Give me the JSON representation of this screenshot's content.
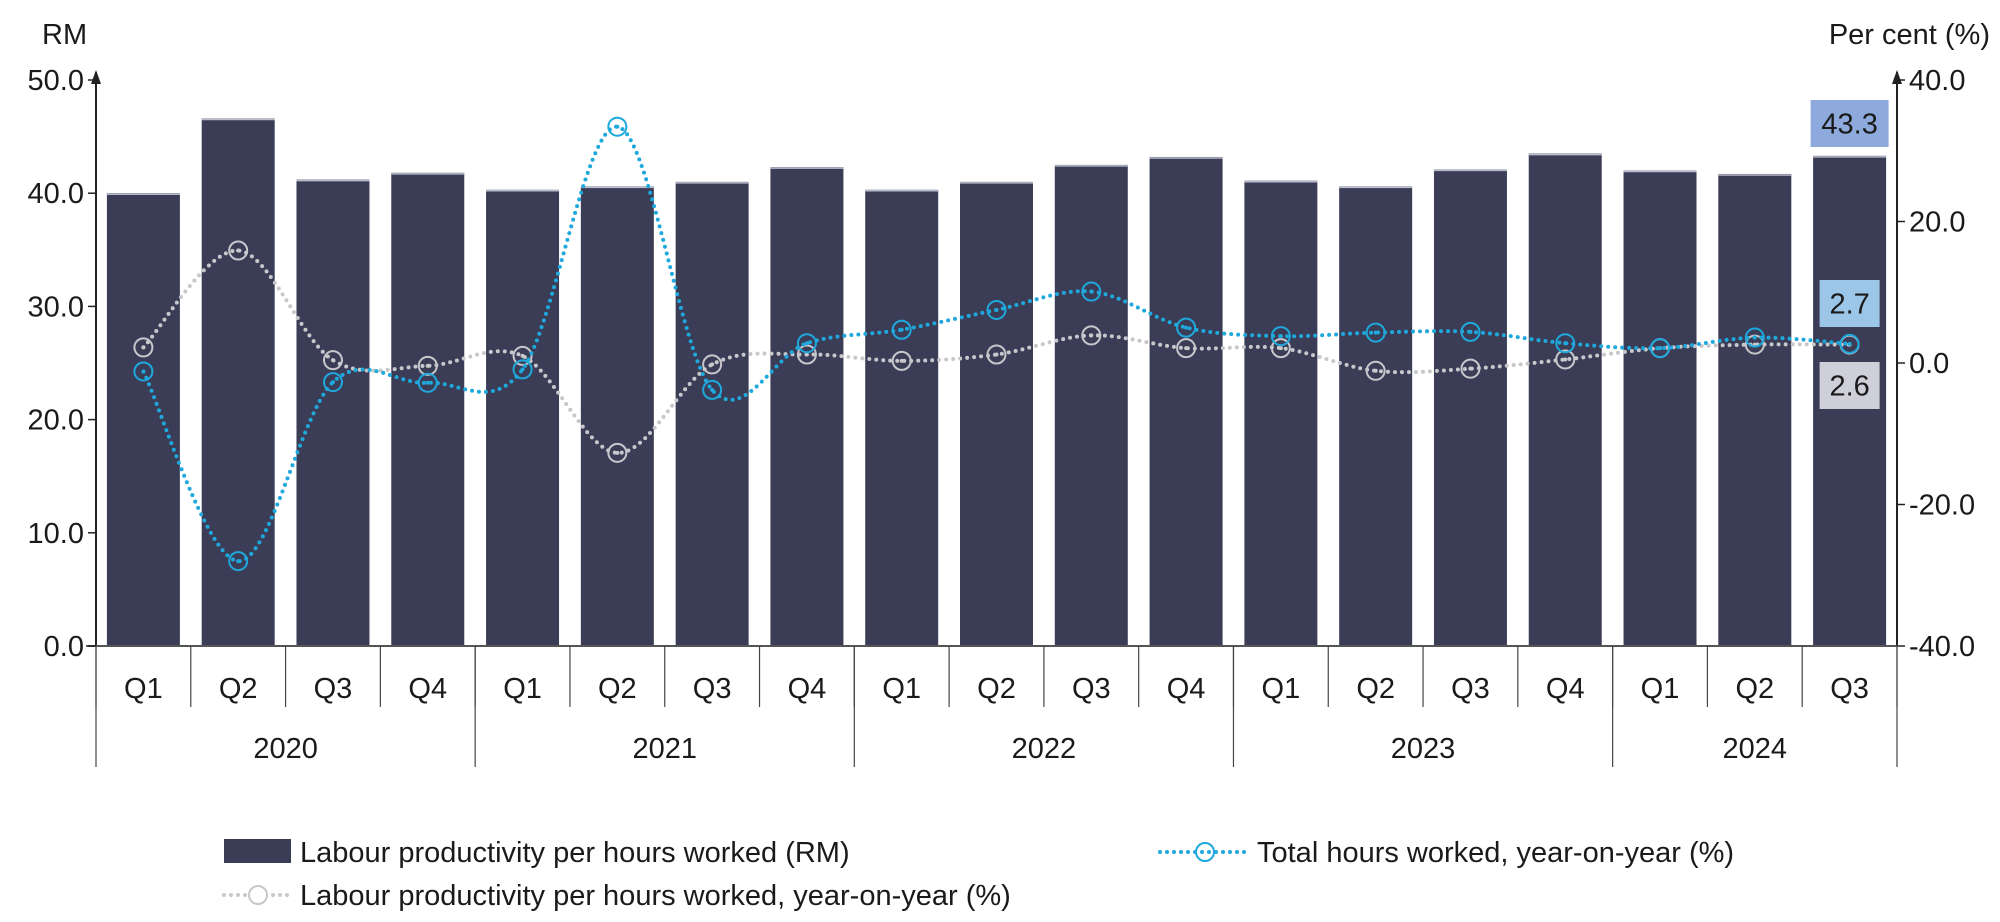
{
  "chart_data": {
    "type": "bar+line",
    "left_axis": {
      "label": "RM",
      "range": [
        0,
        50
      ],
      "ticks": [
        "0.0",
        "10.0",
        "20.0",
        "30.0",
        "40.0",
        "50.0"
      ]
    },
    "right_axis": {
      "label": "Per cent (%)",
      "range": [
        -40,
        40
      ],
      "ticks": [
        "-40.0",
        "-20.0",
        "0.0",
        "20.0",
        "40.0"
      ]
    },
    "quarters": [
      "Q1",
      "Q2",
      "Q3",
      "Q4",
      "Q1",
      "Q2",
      "Q3",
      "Q4",
      "Q1",
      "Q2",
      "Q3",
      "Q4",
      "Q1",
      "Q2",
      "Q3",
      "Q4",
      "Q1",
      "Q2",
      "Q3"
    ],
    "years": [
      {
        "label": "2020",
        "quarters": 4
      },
      {
        "label": "2021",
        "quarters": 4
      },
      {
        "label": "2022",
        "quarters": 4
      },
      {
        "label": "2023",
        "quarters": 4
      },
      {
        "label": "2024",
        "quarters": 3
      }
    ],
    "series": [
      {
        "name": "Labour productivity per hours worked (RM)",
        "type": "bar",
        "axis": "left",
        "color": "#3b3d57",
        "values": [
          40.0,
          46.6,
          41.2,
          41.8,
          40.3,
          40.6,
          41.0,
          42.3,
          40.3,
          41.0,
          42.5,
          43.2,
          41.1,
          40.6,
          42.1,
          43.5,
          42.0,
          41.7,
          43.3
        ]
      },
      {
        "name": "Total hours worked, year-on-year (%)",
        "type": "line",
        "axis": "right",
        "color": "#1fa8dc",
        "values": [
          -1.2,
          -28.0,
          -2.7,
          -2.8,
          -0.9,
          33.4,
          -3.8,
          2.8,
          4.7,
          7.5,
          10.1,
          5.0,
          3.8,
          4.3,
          4.4,
          2.8,
          2.1,
          3.6,
          2.7
        ]
      },
      {
        "name": "Labour productivity per hours worked, year-on-year (%)",
        "type": "line",
        "axis": "right",
        "color": "#c8c8cc",
        "values": [
          2.2,
          15.9,
          0.4,
          -0.4,
          1.0,
          -12.7,
          -0.2,
          1.2,
          0.3,
          1.2,
          3.9,
          2.1,
          2.1,
          -1.1,
          -0.8,
          0.5,
          2.1,
          2.6,
          2.6
        ]
      }
    ],
    "annotations": [
      {
        "text": "43.3",
        "series": 0,
        "color": "#8eaadc"
      },
      {
        "text": "2.7",
        "series": 1,
        "color": "#9cc6e8"
      },
      {
        "text": "2.6",
        "series": 2,
        "color": "#cfcfda"
      }
    ],
    "legend": {
      "placement": "bottom",
      "items": [
        "Labour productivity per hours worked (RM)",
        "Total hours worked, year-on-year (%)",
        "Labour productivity per hours worked, year-on-year (%)"
      ]
    }
  }
}
